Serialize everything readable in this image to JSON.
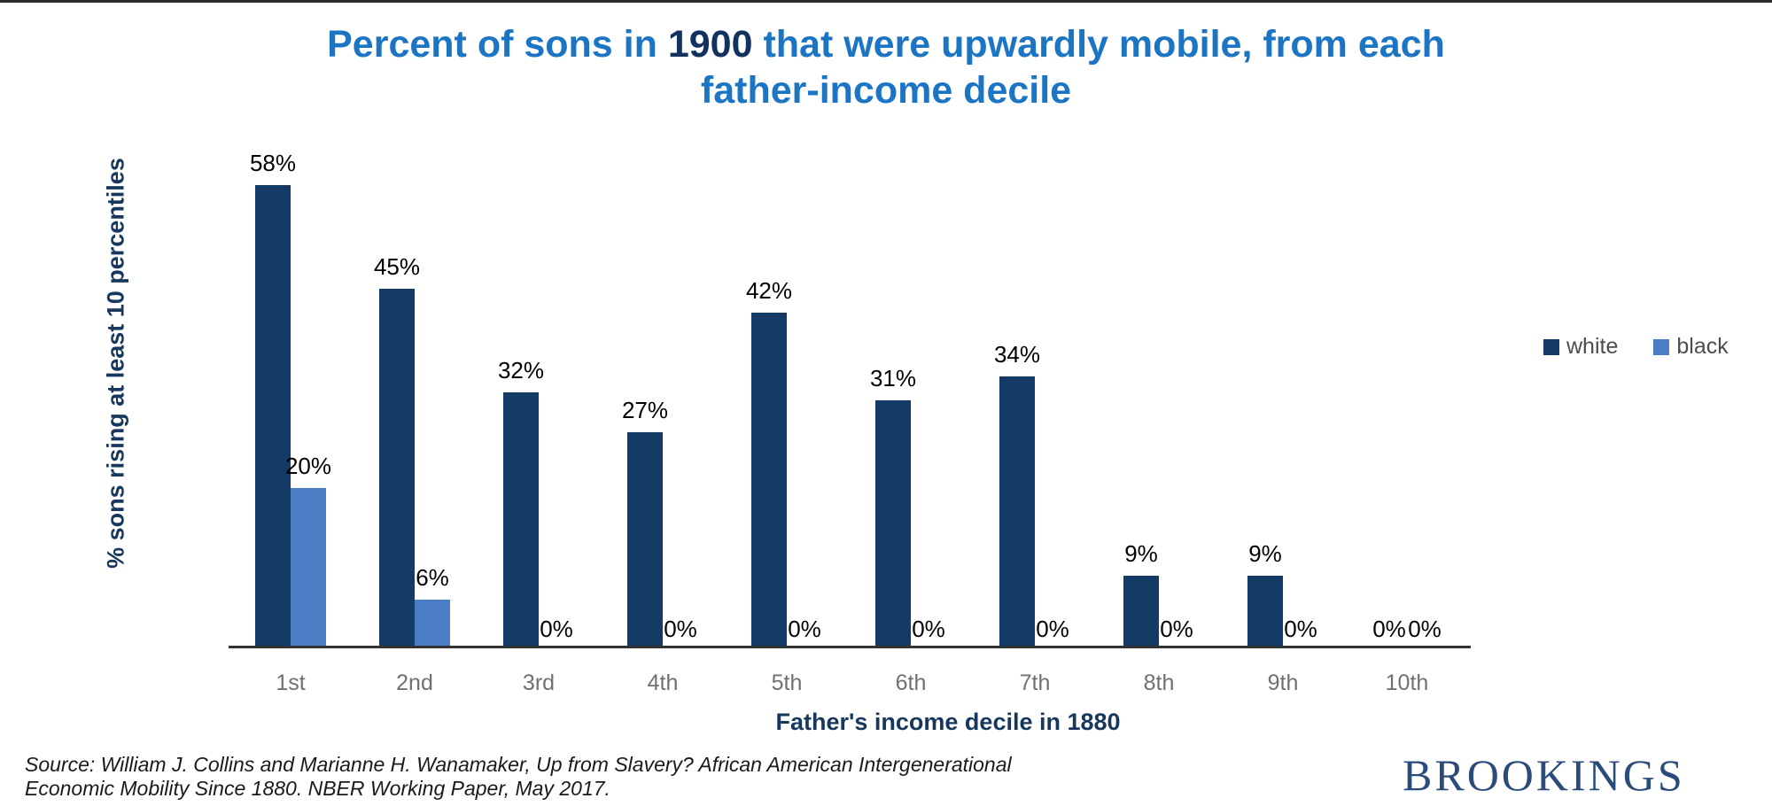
{
  "title": {
    "line1_pre": "Percent of sons in ",
    "line1_year": "1900",
    "line1_post": " that were upwardly mobile, from each",
    "line2": "father-income decile",
    "accent_color": "#1b75c4",
    "year_color": "#12315e"
  },
  "chart_data": {
    "type": "bar",
    "title": "Percent of sons in 1900 that were upwardly mobile, from each father-income decile",
    "categories": [
      "1st",
      "2nd",
      "3rd",
      "4th",
      "5th",
      "6th",
      "7th",
      "8th",
      "9th",
      "10th"
    ],
    "series": [
      {
        "name": "white",
        "color": "#143a66",
        "values": [
          58,
          45,
          32,
          27,
          42,
          31,
          34,
          9,
          9,
          0
        ]
      },
      {
        "name": "black",
        "color": "#4b7dc4",
        "values": [
          20,
          6,
          0,
          0,
          0,
          0,
          0,
          0,
          0,
          0
        ]
      }
    ],
    "value_suffix": "%",
    "xlabel": "Father's income decile in 1880",
    "ylabel": "% sons rising at least 10 percentiles",
    "ylim": [
      0,
      60
    ],
    "grid": false,
    "data_labels": true,
    "legend_position": "right"
  },
  "axis": {
    "x_title": "Father's income decile in 1880",
    "y_title": "% sons rising at least 10 percentiles",
    "line_color": "#333333",
    "tick_color": "#6f7072"
  },
  "source": {
    "line1": "Source: William J. Collins and Marianne H. Wanamaker, Up from Slavery? African American Intergenerational",
    "line2": "Economic Mobility Since 1880. NBER Working Paper, May 2017."
  },
  "branding": {
    "logo_text": "BROOKINGS",
    "logo_color": "#2b4b7a"
  }
}
